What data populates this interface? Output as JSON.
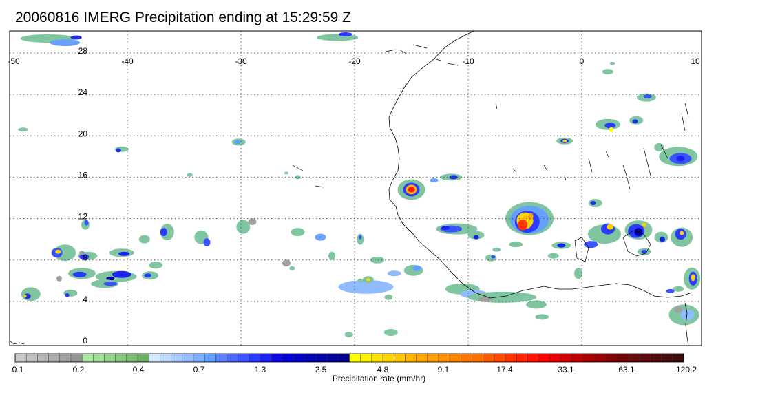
{
  "title": "20060816 IMERG Precipitation ending at 15:29:59 Z",
  "map": {
    "lon_range": [
      -50,
      10
    ],
    "lat_range": [
      -1,
      30
    ],
    "lon_ticks": [
      "-50",
      "-40",
      "-30",
      "-20",
      "-10",
      "0",
      "10"
    ],
    "lat_ticks": [
      "28",
      "24",
      "20",
      "16",
      "12",
      "8",
      "4",
      "0"
    ]
  },
  "colorbar": {
    "label": "Precipitation rate (mm/hr)",
    "tick_labels": [
      "0.1",
      "0.2",
      "0.4",
      "0.7",
      "1.3",
      "2.5",
      "4.8",
      "9.1",
      "17.4",
      "33.1",
      "63.1",
      "120.2"
    ],
    "groups": [
      {
        "count": 6,
        "colors": [
          "#c8c8c8",
          "#bebebe",
          "#b4b4b4",
          "#aaaaaa",
          "#a0a0a0",
          "#969696"
        ]
      },
      {
        "count": 6,
        "colors": [
          "#a8e6a0",
          "#9cdc94",
          "#90d288",
          "#84c87c",
          "#78be70",
          "#6cb464"
        ]
      },
      {
        "count": 6,
        "colors": [
          "#d2e6ff",
          "#bcd8ff",
          "#a6caff",
          "#90bcff",
          "#7aaeff",
          "#64a0ff"
        ]
      },
      {
        "count": 6,
        "colors": [
          "#5a82ff",
          "#4a6aff",
          "#3a52ff",
          "#2a3aff",
          "#1a22f0",
          "#0a0ae0"
        ]
      },
      {
        "count": 6,
        "colors": [
          "#0000d2",
          "#0000c4",
          "#0000b6",
          "#0000a8",
          "#00009a",
          "#00008c"
        ]
      },
      {
        "count": 6,
        "colors": [
          "#ffff00",
          "#fff000",
          "#ffe100",
          "#ffd200",
          "#ffc300",
          "#ffb400"
        ]
      },
      {
        "count": 6,
        "colors": [
          "#ffa500",
          "#ff9a00",
          "#ff8f00",
          "#ff8400",
          "#ff7900",
          "#ff6e00"
        ]
      },
      {
        "count": 6,
        "colors": [
          "#ff5a00",
          "#ff4800",
          "#ff3600",
          "#ff2400",
          "#ff1200",
          "#ff0000"
        ]
      },
      {
        "count": 6,
        "colors": [
          "#e60000",
          "#d20000",
          "#be0000",
          "#aa0000",
          "#960000",
          "#820000"
        ]
      },
      {
        "count": 6,
        "colors": [
          "#6e0000",
          "#640a0a",
          "#5a0a0a",
          "#500a0a",
          "#460a0a",
          "#3c0a0a"
        ]
      }
    ]
  },
  "precip_cells": [
    {
      "lon": -46.5,
      "lat": 29.0,
      "rx": 0.0,
      "ry": 0.0,
      "level": "green"
    },
    {
      "lon": -45.0,
      "lat": 28.8,
      "level": "blue"
    },
    {
      "lon": -46.0,
      "lat": 8.5,
      "level": "red"
    },
    {
      "lon": -44.0,
      "lat": 7.5,
      "level": "blue"
    },
    {
      "lon": -42.0,
      "lat": 7.0,
      "level": "blue"
    },
    {
      "lon": -44.5,
      "lat": 5.0,
      "level": "blue"
    },
    {
      "lon": -21.0,
      "lat": 29.5,
      "level": "red"
    },
    {
      "lon": -15.0,
      "lat": 14.6,
      "level": "red"
    },
    {
      "lon": -4.8,
      "lat": 11.5,
      "level": "red"
    },
    {
      "lon": -6.5,
      "lat": 11.0,
      "level": "blue"
    },
    {
      "lon": -4.0,
      "lat": 12.2,
      "level": "blue"
    },
    {
      "lon": 2.6,
      "lat": 20.5,
      "level": "red"
    },
    {
      "lon": -1.5,
      "lat": 19.3,
      "level": "red"
    },
    {
      "lon": 8.5,
      "lat": 17.6,
      "level": "blue"
    },
    {
      "lon": 5.0,
      "lat": 10.5,
      "level": "red"
    },
    {
      "lon": 2.5,
      "lat": 10.8,
      "level": "red"
    },
    {
      "lon": 8.7,
      "lat": 10.0,
      "level": "blue"
    },
    {
      "lon": 9.7,
      "lat": 6.0,
      "level": "red"
    },
    {
      "lon": -18.8,
      "lat": 5.9,
      "level": "red"
    },
    {
      "lon": -17.5,
      "lat": 5.0,
      "level": "blue"
    }
  ]
}
